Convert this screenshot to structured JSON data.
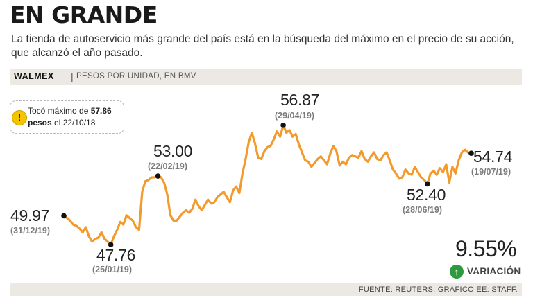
{
  "title": "EN GRANDE",
  "subtitle": "La tienda de autoservicio más grande del país está en la búsqueda del máximo en el precio de su acción, que alcanzó el año pasado.",
  "ticker": "WALMEX",
  "separator": "|",
  "unit": "PESOS POR UNIDAD, EN BMV",
  "callout": {
    "icon": "alert-icon",
    "text_before": "Tocó máximo de ",
    "value": "57.86",
    "pesos": "pesos",
    "text_after": " el 22/10/18"
  },
  "labeled_points": [
    {
      "value": "49.97",
      "date": "(31/12/19)"
    },
    {
      "value": "47.76",
      "date": "(25/01/19)"
    },
    {
      "value": "53.00",
      "date": "(22/02/19)"
    },
    {
      "value": "56.87",
      "date": "(29/04/19)"
    },
    {
      "value": "52.40",
      "date": "(28/06/19)"
    },
    {
      "value": "54.74",
      "date": "(19/07/19)"
    }
  ],
  "variation": {
    "value": "9.55%",
    "label": "VARIACIÓN",
    "icon": "arrow-up-icon",
    "color": "#2e9a3e"
  },
  "source": "FUENTE: REUTERS. GRÁFICO EE: STAFF.",
  "colors": {
    "line": "#f39a2c",
    "marker": "#111111",
    "band": "#ece9e5"
  },
  "chart_data": {
    "type": "line",
    "title": "EN GRANDE",
    "subtitle": "WALMEX | PESOS POR UNIDAD, EN BMV",
    "xlabel": "",
    "ylabel": "Pesos por unidad",
    "ylim": [
      45.5,
      58.5
    ],
    "grid": false,
    "series": [
      {
        "name": "WALMEX",
        "values": [
          49.97,
          49.8,
          49.6,
          49.3,
          49.2,
          49.0,
          48.7,
          49.1,
          48.4,
          48.0,
          48.2,
          48.3,
          48.7,
          48.2,
          48.0,
          47.76,
          48.4,
          48.9,
          49.5,
          49.3,
          50.0,
          49.8,
          49.6,
          49.1,
          48.9,
          51.8,
          52.6,
          52.7,
          52.9,
          52.9,
          53.0,
          52.9,
          52.5,
          51.6,
          50.0,
          49.6,
          49.6,
          49.9,
          50.2,
          50.4,
          50.2,
          50.5,
          51.2,
          50.7,
          50.4,
          50.8,
          51.2,
          50.9,
          51.0,
          51.4,
          51.6,
          51.8,
          51.4,
          51.0,
          51.9,
          52.2,
          51.7,
          53.2,
          54.3,
          55.6,
          56.3,
          55.5,
          54.4,
          54.3,
          54.9,
          55.2,
          55.3,
          55.8,
          56.4,
          56.0,
          56.87,
          56.3,
          56.5,
          56.0,
          56.2,
          55.4,
          54.8,
          54.2,
          54.1,
          53.7,
          54.0,
          54.3,
          54.5,
          54.2,
          53.9,
          54.7,
          55.3,
          54.9,
          53.8,
          54.1,
          53.9,
          54.4,
          54.6,
          54.5,
          54.4,
          54.9,
          54.3,
          54.1,
          54.5,
          54.8,
          54.3,
          54.2,
          54.6,
          54.8,
          54.2,
          53.5,
          53.2,
          52.8,
          52.9,
          53.5,
          53.2,
          53.1,
          53.7,
          53.3,
          52.9,
          52.7,
          52.4,
          53.2,
          53.4,
          53.1,
          53.6,
          53.3,
          53.9,
          52.5,
          53.7,
          53.2,
          54.2,
          54.8,
          55.0,
          54.8,
          54.74
        ]
      }
    ]
  }
}
